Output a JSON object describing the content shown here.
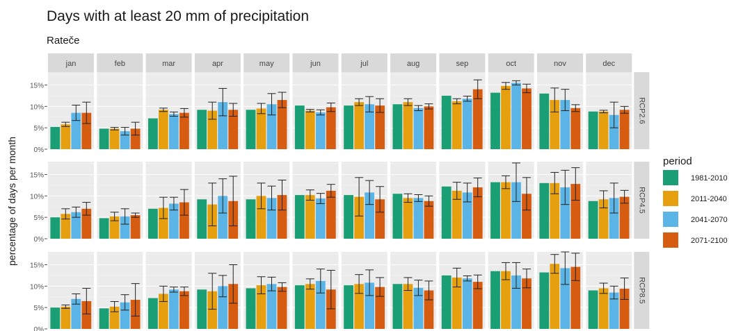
{
  "chart_data": {
    "type": "bar",
    "title": "Days with at least 20 mm of precipitation",
    "subtitle": "Rateče",
    "xlabel": "",
    "ylabel": "percentage of days per month",
    "months": [
      "jan",
      "feb",
      "mar",
      "apr",
      "may",
      "jun",
      "jul",
      "aug",
      "sep",
      "oct",
      "nov",
      "dec"
    ],
    "scenarios": [
      "RCP2.6",
      "RCP4.5",
      "RCP8.5"
    ],
    "y_ticks": [
      "0%",
      "5%",
      "10%",
      "15%"
    ],
    "ylim": [
      0,
      18
    ],
    "legend": {
      "title": "period",
      "position": "right",
      "items": [
        {
          "label": "1981-2010",
          "color": "#1a9e73"
        },
        {
          "label": "2011-2040",
          "color": "#e6a00f"
        },
        {
          "label": "2041-2070",
          "color": "#5ab4e5"
        },
        {
          "label": "2071-2100",
          "color": "#d55c10"
        }
      ]
    },
    "series_values": {
      "RCP2.6": [
        [
          5.2,
          5.8,
          8.5,
          8.5
        ],
        [
          4.8,
          4.8,
          4.2,
          4.8
        ],
        [
          7.2,
          9.2,
          8.2,
          8.5
        ],
        [
          9.2,
          9.0,
          11.0,
          9.2
        ],
        [
          9.2,
          9.5,
          10.5,
          11.5
        ],
        [
          10.2,
          9.0,
          8.6,
          9.8
        ],
        [
          10.2,
          11.0,
          10.5,
          10.2
        ],
        [
          10.5,
          11.0,
          9.6,
          10.0
        ],
        [
          12.5,
          11.2,
          11.8,
          14.0
        ],
        [
          13.2,
          14.8,
          15.5,
          14.2
        ],
        [
          13.0,
          11.5,
          11.5,
          9.6
        ],
        [
          8.8,
          8.8,
          8.0,
          9.2
        ]
      ],
      "RCP4.5": [
        [
          5.0,
          5.8,
          6.2,
          7.0
        ],
        [
          4.8,
          5.2,
          5.2,
          5.5
        ],
        [
          7.0,
          7.2,
          8.2,
          8.5
        ],
        [
          9.2,
          8.0,
          10.0,
          8.8
        ],
        [
          9.2,
          10.0,
          9.5,
          10.2
        ],
        [
          10.2,
          10.2,
          9.4,
          11.2
        ],
        [
          10.2,
          9.8,
          10.8,
          9.2
        ],
        [
          10.5,
          9.5,
          9.5,
          8.8
        ],
        [
          12.2,
          11.2,
          10.8,
          12.0
        ],
        [
          13.2,
          13.2,
          13.2,
          10.5
        ],
        [
          13.0,
          13.0,
          12.0,
          12.8
        ],
        [
          8.8,
          9.2,
          9.5,
          9.8
        ]
      ],
      "RCP8.5": [
        [
          5.0,
          5.2,
          7.0,
          6.5
        ],
        [
          4.8,
          5.2,
          6.2,
          6.8
        ],
        [
          7.2,
          8.2,
          9.2,
          8.8
        ],
        [
          9.2,
          8.8,
          10.0,
          10.5
        ],
        [
          9.5,
          10.2,
          10.5,
          9.8
        ],
        [
          10.2,
          10.5,
          11.2,
          9.2
        ],
        [
          10.2,
          10.5,
          10.8,
          9.8
        ],
        [
          10.5,
          10.5,
          9.6,
          9.0
        ],
        [
          12.5,
          12.0,
          11.8,
          11.0
        ],
        [
          13.5,
          13.5,
          12.5,
          11.8
        ],
        [
          13.2,
          15.2,
          14.2,
          14.5
        ],
        [
          9.0,
          9.5,
          8.5,
          9.4
        ]
      ]
    },
    "error_half_width": {
      "RCP2.6": [
        [
          0,
          0.5,
          1.8,
          2.5
        ],
        [
          0,
          0.3,
          0.9,
          1.5
        ],
        [
          0,
          0.4,
          0.5,
          1.0
        ],
        [
          0,
          2.0,
          3.2,
          1.5
        ],
        [
          0,
          1.2,
          2.5,
          1.8
        ],
        [
          0,
          0.3,
          0.6,
          1.0
        ],
        [
          0,
          0.8,
          1.8,
          1.6
        ],
        [
          0,
          0.8,
          0.6,
          0.6
        ],
        [
          0,
          0.6,
          0.6,
          2.2
        ],
        [
          0,
          0.8,
          0.5,
          1.0
        ],
        [
          0,
          2.8,
          2.5,
          0.8
        ],
        [
          0,
          0.3,
          3.0,
          0.8
        ]
      ],
      "RCP4.5": [
        [
          0,
          1.2,
          1.2,
          1.5
        ],
        [
          0,
          1.0,
          1.8,
          0.5
        ],
        [
          0,
          2.5,
          1.5,
          3.0
        ],
        [
          0,
          5.0,
          4.0,
          5.8
        ],
        [
          0,
          3.0,
          2.8,
          3.5
        ],
        [
          0,
          1.2,
          1.2,
          1.5
        ],
        [
          0,
          4.5,
          2.8,
          3.0
        ],
        [
          0,
          1.0,
          0.8,
          1.2
        ],
        [
          0,
          2.0,
          2.2,
          2.2
        ],
        [
          0,
          1.5,
          4.5,
          3.8
        ],
        [
          0,
          2.5,
          4.0,
          3.8
        ],
        [
          0,
          2.0,
          3.5,
          1.5
        ]
      ],
      "RCP8.5": [
        [
          0,
          0.4,
          1.2,
          3.0
        ],
        [
          0,
          1.2,
          1.8,
          3.8
        ],
        [
          0,
          1.8,
          0.6,
          1.0
        ],
        [
          0,
          4.2,
          2.5,
          4.5
        ],
        [
          0,
          2.0,
          1.6,
          1.0
        ],
        [
          0,
          1.2,
          2.8,
          4.5
        ],
        [
          0,
          2.2,
          3.0,
          2.2
        ],
        [
          0,
          1.5,
          1.8,
          2.2
        ],
        [
          0,
          2.2,
          0.6,
          1.6
        ],
        [
          0,
          2.0,
          3.0,
          2.2
        ],
        [
          0,
          2.2,
          3.8,
          3.2
        ],
        [
          0,
          1.2,
          1.5,
          2.5
        ]
      ]
    }
  }
}
